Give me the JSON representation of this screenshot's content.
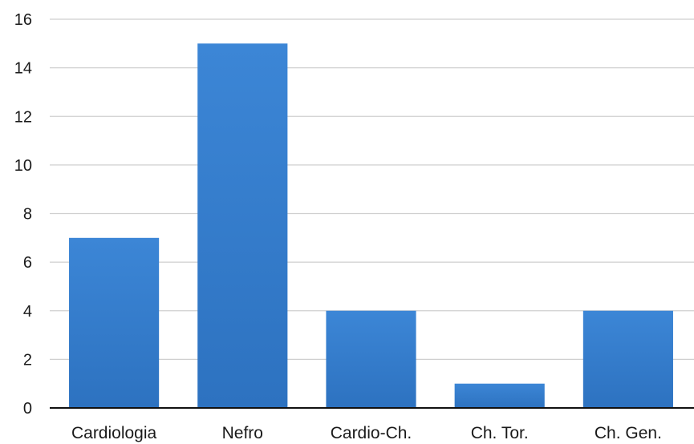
{
  "chart_data": {
    "type": "bar",
    "categories": [
      "Cardiologia",
      "Nefro",
      "Cardio-Ch.",
      "Ch. Tor.",
      "Ch. Gen."
    ],
    "values": [
      7,
      15,
      4,
      1,
      4
    ],
    "title": "",
    "xlabel": "",
    "ylabel": "",
    "ylim": [
      0,
      16
    ],
    "yticks": [
      0,
      2,
      4,
      6,
      8,
      10,
      12,
      14,
      16
    ],
    "grid": true,
    "legend": "none",
    "colors": {
      "bar": "#3b84d4",
      "bar_dark": "#2c6fbd",
      "grid": "#cfcfcf",
      "axis": "#111111"
    }
  }
}
